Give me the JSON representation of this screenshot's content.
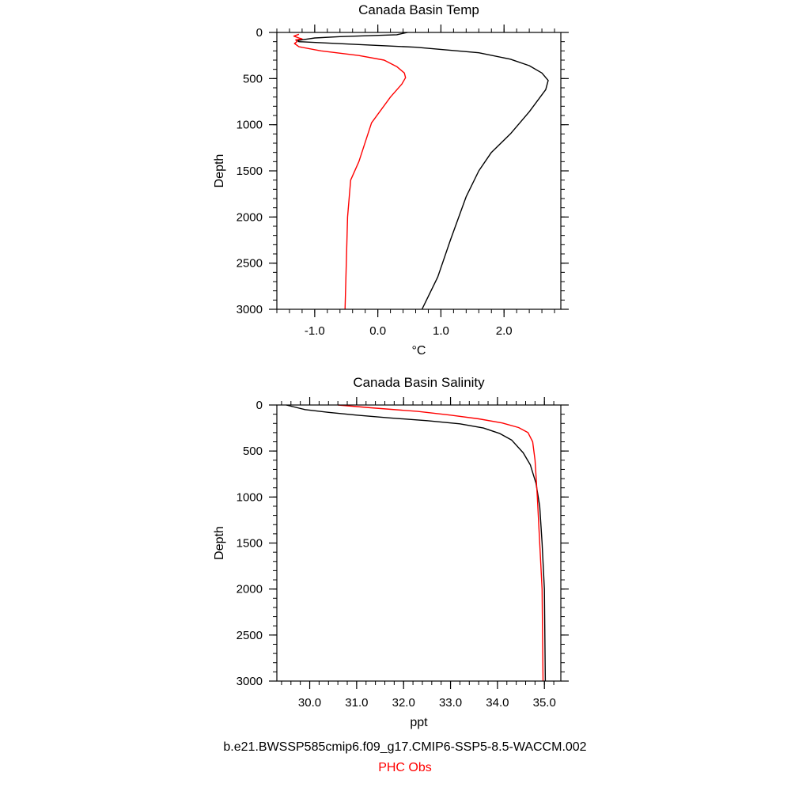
{
  "colors": {
    "model": "#000000",
    "obs": "#ff0000",
    "axes": "#000000"
  },
  "legend": {
    "model_label": "b.e21.BWSSP585cmip6.f09_g17.CMIP6-SSP5-8.5-WACCM.002",
    "obs_label": "PHC Obs"
  },
  "chart_data": [
    {
      "type": "line",
      "title": "Canada Basin Temp",
      "xlabel": "°C",
      "ylabel": "Depth",
      "xlim": [
        -1.6,
        2.9
      ],
      "ylim": [
        3000,
        0
      ],
      "y_inverted": true,
      "x_ticks": [
        -1.0,
        0.0,
        1.0,
        2.0
      ],
      "x_tick_labels": [
        "-1.0",
        "0.0",
        "1.0",
        "2.0"
      ],
      "x_minor_step": 0.2,
      "y_ticks": [
        0,
        500,
        1000,
        1500,
        2000,
        2500,
        3000
      ],
      "y_tick_labels": [
        "0",
        "500",
        "1000",
        "1500",
        "2000",
        "2500",
        "3000"
      ],
      "y_minor_step": 100,
      "series": [
        {
          "color": "#000000",
          "points": [
            [
              0.47,
              0
            ],
            [
              0.3,
              25
            ],
            [
              -0.6,
              45
            ],
            [
              -1.0,
              60
            ],
            [
              -1.1,
              70
            ],
            [
              -1.2,
              80
            ],
            [
              -1.27,
              90
            ],
            [
              -1.25,
              100
            ],
            [
              -0.5,
              125
            ],
            [
              0.6,
              160
            ],
            [
              1.6,
              220
            ],
            [
              2.1,
              290
            ],
            [
              2.4,
              360
            ],
            [
              2.6,
              440
            ],
            [
              2.7,
              520
            ],
            [
              2.66,
              620
            ],
            [
              2.4,
              860
            ],
            [
              2.1,
              1100
            ],
            [
              1.8,
              1300
            ],
            [
              1.6,
              1500
            ],
            [
              1.4,
              1780
            ],
            [
              1.15,
              2250
            ],
            [
              0.95,
              2650
            ],
            [
              0.7,
              3000
            ]
          ]
        },
        {
          "color": "#ff0000",
          "points": [
            [
              -1.25,
              20
            ],
            [
              -1.33,
              40
            ],
            [
              -1.25,
              60
            ],
            [
              -1.2,
              70
            ],
            [
              -1.3,
              80
            ],
            [
              -1.28,
              100
            ],
            [
              -1.32,
              120
            ],
            [
              -1.25,
              155
            ],
            [
              -0.9,
              200
            ],
            [
              -0.3,
              250
            ],
            [
              0.1,
              300
            ],
            [
              0.3,
              370
            ],
            [
              0.42,
              440
            ],
            [
              0.44,
              490
            ],
            [
              0.38,
              560
            ],
            [
              0.2,
              700
            ],
            [
              -0.1,
              980
            ],
            [
              -0.3,
              1400
            ],
            [
              -0.43,
              1600
            ],
            [
              -0.48,
              2000
            ],
            [
              -0.52,
              3000
            ]
          ]
        }
      ]
    },
    {
      "type": "line",
      "title": "Canada Basin Salinity",
      "xlabel": "ppt",
      "ylabel": "Depth",
      "xlim": [
        29.3,
        35.35
      ],
      "ylim": [
        3000,
        0
      ],
      "y_inverted": true,
      "x_ticks": [
        30.0,
        31.0,
        32.0,
        33.0,
        34.0,
        35.0
      ],
      "x_tick_labels": [
        "30.0",
        "31.0",
        "32.0",
        "33.0",
        "34.0",
        "35.0"
      ],
      "x_minor_step": 0.2,
      "y_ticks": [
        0,
        500,
        1000,
        1500,
        2000,
        2500,
        3000
      ],
      "y_tick_labels": [
        "0",
        "500",
        "1000",
        "1500",
        "2000",
        "2500",
        "3000"
      ],
      "y_minor_step": 100,
      "series": [
        {
          "color": "#000000",
          "points": [
            [
              29.5,
              0
            ],
            [
              29.9,
              50
            ],
            [
              30.4,
              80
            ],
            [
              31.0,
              110
            ],
            [
              31.7,
              140
            ],
            [
              32.5,
              170
            ],
            [
              33.2,
              205
            ],
            [
              33.7,
              250
            ],
            [
              34.05,
              310
            ],
            [
              34.3,
              380
            ],
            [
              34.55,
              520
            ],
            [
              34.7,
              650
            ],
            [
              34.82,
              850
            ],
            [
              34.9,
              1100
            ],
            [
              34.95,
              1500
            ],
            [
              35.0,
              2000
            ],
            [
              35.02,
              3000
            ]
          ]
        },
        {
          "color": "#ff0000",
          "points": [
            [
              30.6,
              0
            ],
            [
              31.3,
              30
            ],
            [
              32.3,
              70
            ],
            [
              33.0,
              110
            ],
            [
              33.6,
              150
            ],
            [
              34.1,
              195
            ],
            [
              34.45,
              245
            ],
            [
              34.65,
              300
            ],
            [
              34.75,
              400
            ],
            [
              34.8,
              600
            ],
            [
              34.85,
              1000
            ],
            [
              34.9,
              1500
            ],
            [
              34.95,
              2000
            ],
            [
              34.97,
              3000
            ]
          ]
        }
      ]
    }
  ]
}
